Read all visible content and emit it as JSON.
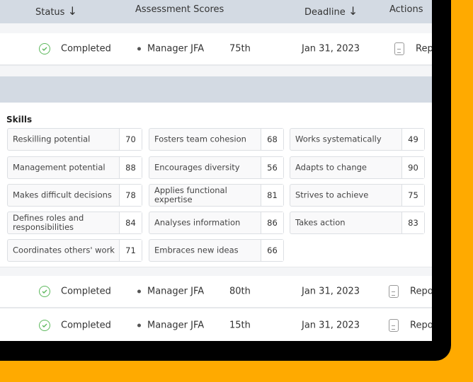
{
  "header": {
    "status": "Status",
    "assessment": "Assessment Scores",
    "deadline": "Deadline",
    "actions": "Actions"
  },
  "rows": [
    {
      "status": "Completed",
      "assessment": "Manager JFA",
      "score": "75th",
      "deadline": "Jan 31, 2023",
      "action": "Rep"
    },
    {
      "status": "Completed",
      "assessment": "Manager JFA",
      "score": "80th",
      "deadline": "Jan 31, 2023",
      "action": "Repo"
    },
    {
      "status": "Completed",
      "assessment": "Manager JFA",
      "score": "15th",
      "deadline": "Jan 31, 2023",
      "action": "Repo"
    }
  ],
  "skills": {
    "title": "Skills",
    "items": [
      {
        "label": "Reskilling potential",
        "value": "70"
      },
      {
        "label": "Fosters team cohesion",
        "value": "68"
      },
      {
        "label": "Works systematically",
        "value": "49"
      },
      {
        "label": "Management potential",
        "value": "88"
      },
      {
        "label": "Encourages diversity",
        "value": "56"
      },
      {
        "label": "Adapts to change",
        "value": "90"
      },
      {
        "label": "Makes difficult decisions",
        "value": "78"
      },
      {
        "label": "Applies functional expertise",
        "value": "81"
      },
      {
        "label": "Strives to achieve",
        "value": "75"
      },
      {
        "label": "Defines roles and responsibilities",
        "value": "84"
      },
      {
        "label": "Analyses information",
        "value": "86"
      },
      {
        "label": "Takes action",
        "value": "83"
      },
      {
        "label": "Coordinates others' work",
        "value": "71"
      },
      {
        "label": "Embraces new ideas",
        "value": "66"
      }
    ]
  },
  "colors": {
    "background": "#FFAA00",
    "header": "#d3dae3",
    "success": "#5cb85c"
  }
}
